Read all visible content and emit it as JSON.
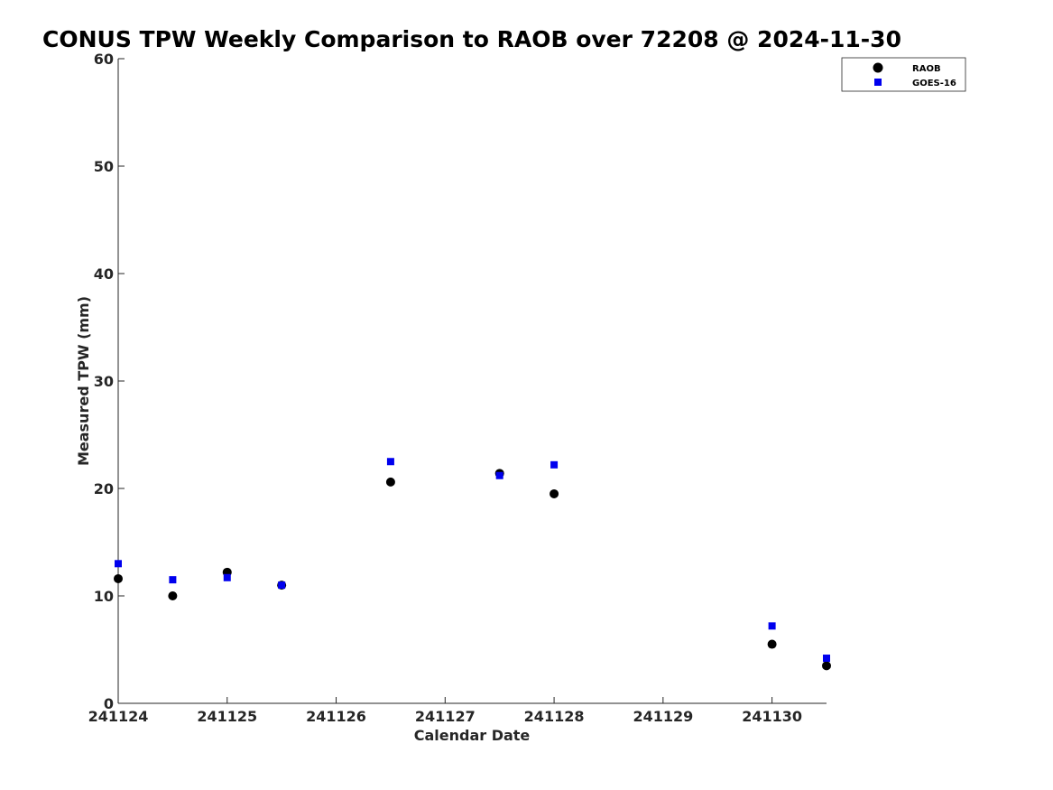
{
  "chart_data": {
    "type": "scatter",
    "title": "CONUS TPW Weekly Comparison to RAOB over 72208 @ 2024-11-30",
    "xlabel": "Calendar Date",
    "ylabel": "Measured TPW (mm)",
    "xlim": [
      0,
      6.5
    ],
    "ylim": [
      0,
      60
    ],
    "x_ticks": [
      0,
      1,
      2,
      3,
      4,
      5,
      6
    ],
    "x_tick_labels": [
      "241124",
      "241125",
      "241126",
      "241127",
      "241128",
      "241129",
      "241130"
    ],
    "y_ticks": [
      0,
      10,
      20,
      30,
      40,
      50,
      60
    ],
    "y_tick_labels": [
      "0",
      "10",
      "20",
      "30",
      "40",
      "50",
      "60"
    ],
    "grid": false,
    "legend_position": "top-right",
    "series": [
      {
        "name": "RAOB",
        "marker": "circle",
        "color": "#000000",
        "points": [
          {
            "x": 0,
            "y": 11.6
          },
          {
            "x": 0.5,
            "y": 10.0
          },
          {
            "x": 1,
            "y": 12.2
          },
          {
            "x": 1.5,
            "y": 11.0
          },
          {
            "x": 2.5,
            "y": 20.6
          },
          {
            "x": 3.5,
            "y": 21.4
          },
          {
            "x": 4,
            "y": 19.5
          },
          {
            "x": 6,
            "y": 5.5
          },
          {
            "x": 6.5,
            "y": 3.5
          }
        ]
      },
      {
        "name": "GOES-16",
        "marker": "square",
        "color": "#0000ee",
        "points": [
          {
            "x": 0,
            "y": 13.0
          },
          {
            "x": 0.5,
            "y": 11.5
          },
          {
            "x": 1,
            "y": 11.7
          },
          {
            "x": 1.5,
            "y": 11.0
          },
          {
            "x": 2.5,
            "y": 22.5
          },
          {
            "x": 3.5,
            "y": 21.2
          },
          {
            "x": 4,
            "y": 22.2
          },
          {
            "x": 6,
            "y": 7.2
          },
          {
            "x": 6.5,
            "y": 4.2
          }
        ]
      }
    ]
  }
}
